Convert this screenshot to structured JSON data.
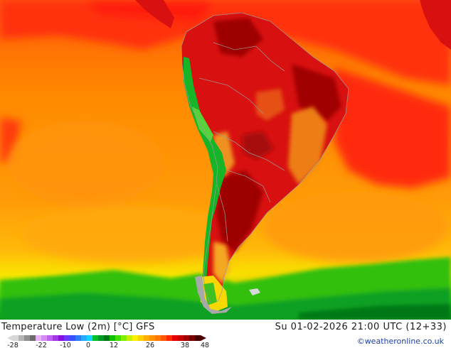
{
  "map": {
    "title": "Temperature Low (2m) [°C] GFS",
    "valid_time": "Su 01-02-2026 21:00 UTC (12+33)",
    "credit": "©weatheronline.co.uk",
    "colors": {
      "ocean_warm": "#ff8a00",
      "ocean_hot": "#ff2a10",
      "land_hot": "#d81010",
      "land_hottest": "#9e0000",
      "highland": "#f2a020",
      "cold_green": "#3acc10",
      "mountain_green": "#10b020",
      "ice_gray": "#a8a8a8"
    }
  },
  "legend": {
    "ticks": [
      "-28",
      "-22",
      "-10",
      "0",
      "12",
      "26",
      "38",
      "48"
    ],
    "colors": [
      "#d8d8d8",
      "#b4b4b4",
      "#909090",
      "#6c6c6c",
      "#e7b3f5",
      "#d48cf0",
      "#c060f0",
      "#a43ae6",
      "#8a10e0",
      "#6a38ff",
      "#3a50ff",
      "#2f7cff",
      "#2aaaff",
      "#16d0ff",
      "#00c030",
      "#009a22",
      "#007814",
      "#10c000",
      "#40e000",
      "#80f000",
      "#c6f000",
      "#f8f000",
      "#ffd000",
      "#ffb000",
      "#ff9400",
      "#ff7800",
      "#ff5800",
      "#ff2a00",
      "#e80000",
      "#c80000",
      "#a00000",
      "#780000",
      "#4a0000"
    ]
  }
}
